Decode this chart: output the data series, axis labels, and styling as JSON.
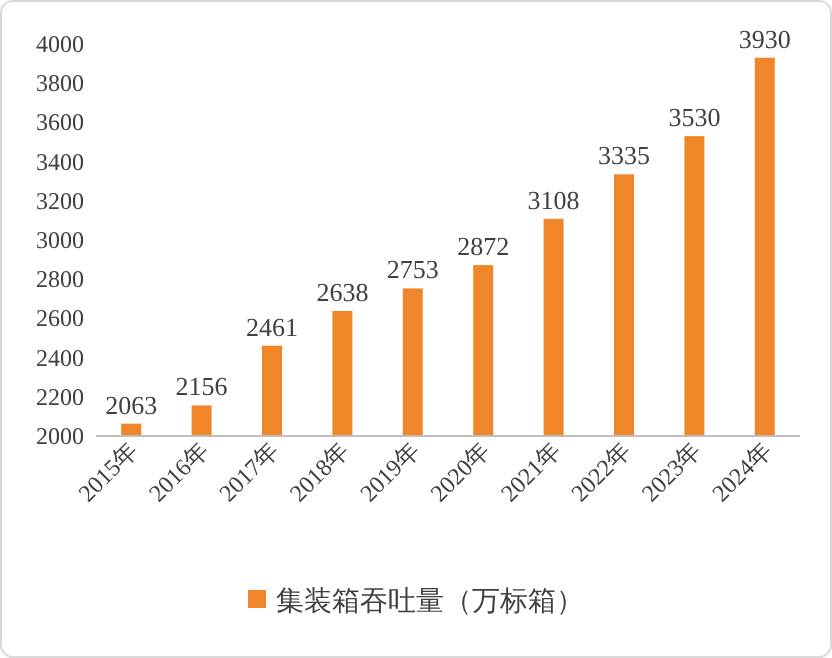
{
  "chart_data": {
    "type": "bar",
    "categories": [
      "2015年",
      "2016年",
      "2017年",
      "2018年",
      "2019年",
      "2020年",
      "2021年",
      "2022年",
      "2023年",
      "2024年"
    ],
    "series": [
      {
        "name": "集装箱吞吐量（万标箱）",
        "color": "#f0862a",
        "values": [
          2063,
          2156,
          2461,
          2638,
          2753,
          2872,
          3108,
          3335,
          3530,
          3930
        ]
      }
    ],
    "ylim": [
      2000,
      4000
    ],
    "yticks": [
      2000,
      2200,
      2400,
      2600,
      2800,
      3000,
      3200,
      3400,
      3600,
      3800,
      4000
    ],
    "data_labels": true,
    "legend": "bottom"
  }
}
